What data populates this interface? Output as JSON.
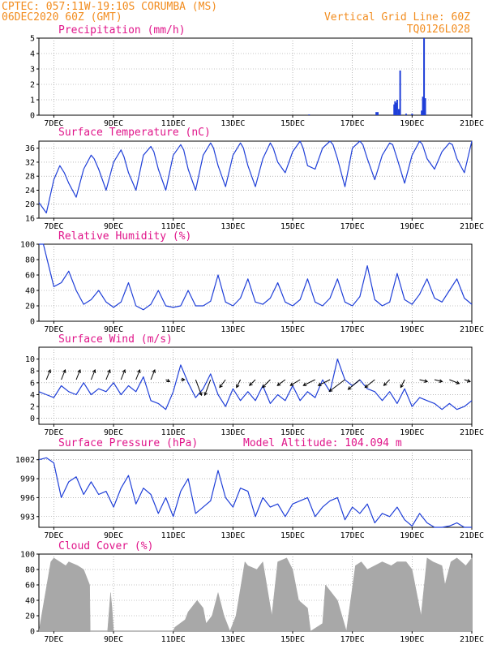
{
  "header": {
    "line1_left": "CPTEC:   057:11W-19:10S   CORUMBA (MS)",
    "line2_left": "06DEC2020 60Z (GMT)",
    "line1_right": "Vertical Grid Line: 60Z",
    "line2_right": "TQ0126L028"
  },
  "altitude_label": "Model Altitude: 104.094 m",
  "x_axis": {
    "ticks": [
      {
        "t": 0.5,
        "label": "7DEC"
      },
      {
        "t": 2.5,
        "label": "9DEC"
      },
      {
        "t": 4.5,
        "label": "11DEC"
      },
      {
        "t": 6.5,
        "label": "13DEC"
      },
      {
        "t": 8.5,
        "label": "15DEC"
      },
      {
        "t": 10.5,
        "label": "17DEC"
      },
      {
        "t": 12.5,
        "label": "19DEC"
      },
      {
        "t": 14.5,
        "label": "21DEC"
      }
    ],
    "tmin": 0,
    "tmax": 14.5
  },
  "colors": {
    "series": "#1f3fd8",
    "cloud": "#a8a8a8",
    "header": "#f28c1e",
    "titles": "#e0158a"
  },
  "chart_data": [
    {
      "type": "bar",
      "title": "Precipitation (mm/h)",
      "ylim": [
        0,
        5
      ],
      "yticks": [
        0,
        1,
        2,
        3,
        4,
        5
      ],
      "x": [
        9.05,
        11.3,
        11.35,
        11.9,
        11.93,
        11.96,
        12.0,
        12.05,
        12.08,
        12.1,
        12.3,
        12.5,
        12.82,
        12.86,
        12.9,
        12.94
      ],
      "values": [
        0.05,
        0.2,
        0.2,
        0.7,
        0.9,
        0.8,
        1.0,
        0.4,
        0.3,
        2.9,
        0.1,
        0.1,
        0.3,
        1.2,
        5.0,
        1.1
      ]
    },
    {
      "type": "line",
      "title": "Surface Temperature (nC)",
      "ylim": [
        16,
        38
      ],
      "yticks": [
        16,
        20,
        24,
        28,
        32,
        36
      ],
      "x": [
        0,
        0.25,
        0.5,
        0.7,
        0.85,
        1.0,
        1.25,
        1.5,
        1.75,
        1.85,
        2.0,
        2.25,
        2.5,
        2.75,
        2.85,
        3.0,
        3.25,
        3.5,
        3.75,
        3.85,
        4.0,
        4.25,
        4.5,
        4.75,
        4.85,
        5.0,
        5.25,
        5.5,
        5.75,
        5.85,
        6.0,
        6.25,
        6.5,
        6.75,
        6.85,
        7.0,
        7.25,
        7.5,
        7.75,
        7.85,
        8.0,
        8.25,
        8.5,
        8.75,
        8.85,
        9.0,
        9.25,
        9.5,
        9.75,
        9.85,
        10.0,
        10.25,
        10.5,
        10.75,
        10.85,
        11.0,
        11.25,
        11.5,
        11.75,
        11.85,
        12.0,
        12.25,
        12.5,
        12.75,
        12.85,
        13.0,
        13.25,
        13.5,
        13.75,
        13.85,
        14.0,
        14.25,
        14.5
      ],
      "values": [
        20.5,
        17.5,
        27,
        31,
        29,
        26,
        22,
        30,
        34,
        33,
        30,
        24,
        32,
        35.5,
        33.5,
        29,
        24,
        34,
        36.5,
        35,
        30,
        24,
        34,
        37,
        35.5,
        30,
        24,
        34,
        37.5,
        36,
        31,
        25,
        34,
        37.5,
        36,
        31,
        25,
        33,
        37.5,
        36,
        32,
        29,
        35,
        38,
        36,
        31,
        30,
        36,
        38,
        37,
        33,
        25,
        36,
        38,
        37,
        33,
        27,
        34,
        37.5,
        37,
        33,
        26,
        34,
        38,
        37,
        33,
        30,
        35,
        37.5,
        37,
        33,
        29,
        38
      ]
    },
    {
      "type": "line",
      "title": "Relative Humidity (%)",
      "ylim": [
        0,
        100
      ],
      "yticks": [
        0,
        20,
        40,
        60,
        80,
        100
      ],
      "x": [
        0,
        0.15,
        0.5,
        0.75,
        1.0,
        1.25,
        1.5,
        1.75,
        2.0,
        2.25,
        2.5,
        2.75,
        3.0,
        3.25,
        3.5,
        3.75,
        4.0,
        4.25,
        4.5,
        4.75,
        5.0,
        5.25,
        5.5,
        5.75,
        6.0,
        6.25,
        6.5,
        6.75,
        7.0,
        7.25,
        7.5,
        7.75,
        8.0,
        8.25,
        8.5,
        8.75,
        9.0,
        9.25,
        9.5,
        9.75,
        10.0,
        10.25,
        10.5,
        10.75,
        11.0,
        11.25,
        11.5,
        11.75,
        12.0,
        12.25,
        12.5,
        12.75,
        13.0,
        13.25,
        13.5,
        13.75,
        14.0,
        14.25,
        14.5
      ],
      "values": [
        100,
        100,
        45,
        50,
        65,
        40,
        22,
        28,
        40,
        25,
        18,
        25,
        50,
        20,
        15,
        22,
        40,
        20,
        18,
        20,
        40,
        20,
        20,
        26,
        60,
        25,
        20,
        30,
        55,
        25,
        22,
        30,
        50,
        25,
        20,
        28,
        55,
        25,
        20,
        30,
        55,
        25,
        20,
        32,
        72,
        28,
        20,
        25,
        62,
        28,
        22,
        35,
        55,
        30,
        25,
        40,
        55,
        30,
        22
      ]
    },
    {
      "type": "line",
      "title": "Surface Wind (m/s)",
      "ylim": [
        -1,
        12
      ],
      "yticks": [
        0,
        2,
        4,
        6,
        8,
        10
      ],
      "x": [
        0,
        0.25,
        0.5,
        0.75,
        1.0,
        1.25,
        1.5,
        1.75,
        2.0,
        2.25,
        2.5,
        2.75,
        3.0,
        3.25,
        3.5,
        3.75,
        4.0,
        4.25,
        4.5,
        4.75,
        5.0,
        5.25,
        5.5,
        5.75,
        6.0,
        6.25,
        6.5,
        6.75,
        7.0,
        7.25,
        7.5,
        7.75,
        8.0,
        8.25,
        8.5,
        8.75,
        9.0,
        9.25,
        9.5,
        9.75,
        10.0,
        10.25,
        10.5,
        10.75,
        11.0,
        11.25,
        11.5,
        11.75,
        12.0,
        12.25,
        12.5,
        12.75,
        13.0,
        13.25,
        13.5,
        13.75,
        14.0,
        14.25,
        14.5
      ],
      "values": [
        4.5,
        4.0,
        3.5,
        5.5,
        4.5,
        4.0,
        6.0,
        4.0,
        5.0,
        4.5,
        6.0,
        4.0,
        5.5,
        4.5,
        7.0,
        3.0,
        2.5,
        1.5,
        4.5,
        9.0,
        6.0,
        3.5,
        5.0,
        7.5,
        4.0,
        2.0,
        5.0,
        3.0,
        4.5,
        3.0,
        5.5,
        2.5,
        4.0,
        3.0,
        5.5,
        3.0,
        4.5,
        3.5,
        6.5,
        4.5,
        10.0,
        6.5,
        5.5,
        6.5,
        5.0,
        4.5,
        3.0,
        4.5,
        2.5,
        5.0,
        2.0,
        3.5,
        3.0,
        2.5,
        1.5,
        2.5,
        1.5,
        2.0,
        3.0
      ],
      "arrows": {
        "x": [
          0.25,
          0.75,
          1.25,
          1.75,
          2.25,
          2.75,
          3.25,
          3.75,
          4.25,
          4.75,
          5.25,
          5.75,
          6.25,
          6.75,
          7.25,
          7.75,
          8.25,
          8.75,
          9.25,
          9.75,
          10.25,
          10.75,
          11.25,
          11.75,
          12.25,
          12.75,
          13.25,
          13.75,
          14.25
        ],
        "u": [
          2,
          2,
          2,
          2,
          2,
          2,
          2,
          2,
          2,
          2,
          3,
          -3,
          -3,
          -2,
          -3,
          -4,
          -4,
          -5,
          -6,
          -6,
          -8,
          -6,
          -5,
          -3,
          -2,
          4,
          4,
          5,
          3
        ],
        "v": [
          5,
          5,
          5,
          5,
          5,
          5,
          5,
          5,
          -1,
          0,
          -8,
          -8,
          -4,
          -4,
          -3,
          -4,
          -3,
          -3,
          -3,
          -3,
          -6,
          -5,
          -4,
          -3,
          -4,
          -1,
          -1,
          -2,
          -1
        ]
      }
    },
    {
      "type": "line",
      "title": "Surface Pressure (hPa)",
      "ylim": [
        991.3,
        1003.5
      ],
      "yticks": [
        993,
        996,
        999,
        1002
      ],
      "x": [
        0,
        0.25,
        0.5,
        0.75,
        1.0,
        1.25,
        1.5,
        1.75,
        2.0,
        2.25,
        2.5,
        2.75,
        3.0,
        3.25,
        3.5,
        3.75,
        4.0,
        4.25,
        4.5,
        4.75,
        5.0,
        5.25,
        5.5,
        5.75,
        6.0,
        6.25,
        6.5,
        6.75,
        7.0,
        7.25,
        7.5,
        7.75,
        8.0,
        8.25,
        8.5,
        8.75,
        9.0,
        9.25,
        9.5,
        9.75,
        10.0,
        10.25,
        10.5,
        10.75,
        11.0,
        11.25,
        11.5,
        11.75,
        12.0,
        12.25,
        12.5,
        12.75,
        13.0,
        13.25,
        13.5,
        13.75,
        14.0,
        14.25,
        14.5
      ],
      "values": [
        1002,
        1002.3,
        1001.5,
        996.0,
        998.5,
        999.3,
        996.5,
        998.5,
        996.5,
        997.0,
        994.5,
        997.5,
        999.5,
        995.0,
        997.5,
        996.5,
        993.5,
        996.0,
        993.0,
        997.0,
        999.0,
        993.5,
        994.5,
        995.5,
        1000.3,
        996.0,
        994.5,
        997.5,
        997.0,
        993.0,
        996.0,
        994.5,
        995.0,
        993.0,
        995.0,
        995.5,
        996.0,
        993.0,
        994.5,
        995.5,
        996.0,
        992.5,
        994.5,
        993.5,
        995.0,
        992.0,
        993.5,
        993.0,
        994.5,
        992.5,
        991.5,
        993.5,
        992.0,
        991.0,
        990.5,
        991.5,
        992.0,
        990.5,
        991.0
      ]
    },
    {
      "type": "area",
      "title": "Cloud Cover (%)",
      "ylim": [
        0,
        100
      ],
      "yticks": [
        0,
        20,
        40,
        60,
        80,
        100
      ],
      "x": [
        0,
        0.4,
        0.5,
        0.9,
        1.0,
        1.3,
        1.5,
        1.7,
        1.72,
        2.3,
        2.4,
        2.45,
        2.5,
        4.5,
        4.55,
        4.9,
        5.0,
        5.3,
        5.5,
        5.6,
        5.8,
        6.0,
        6.2,
        6.4,
        6.6,
        6.9,
        7.0,
        7.3,
        7.5,
        7.8,
        8.0,
        8.3,
        8.5,
        8.7,
        9.0,
        9.1,
        9.3,
        9.5,
        9.6,
        10.0,
        10.3,
        10.6,
        10.8,
        11.0,
        11.5,
        11.8,
        12.0,
        12.3,
        12.5,
        12.8,
        13.0,
        13.2,
        13.5,
        13.6,
        13.8,
        14.0,
        14.3,
        14.5
      ],
      "values": [
        0,
        90,
        95,
        85,
        90,
        85,
        80,
        60,
        0,
        0,
        50,
        30,
        0,
        0,
        5,
        15,
        25,
        40,
        30,
        10,
        20,
        50,
        20,
        0,
        20,
        90,
        85,
        80,
        90,
        20,
        90,
        95,
        80,
        40,
        30,
        0,
        5,
        10,
        60,
        40,
        0,
        85,
        90,
        80,
        90,
        85,
        90,
        90,
        80,
        20,
        95,
        90,
        85,
        60,
        90,
        95,
        85,
        95
      ]
    }
  ]
}
